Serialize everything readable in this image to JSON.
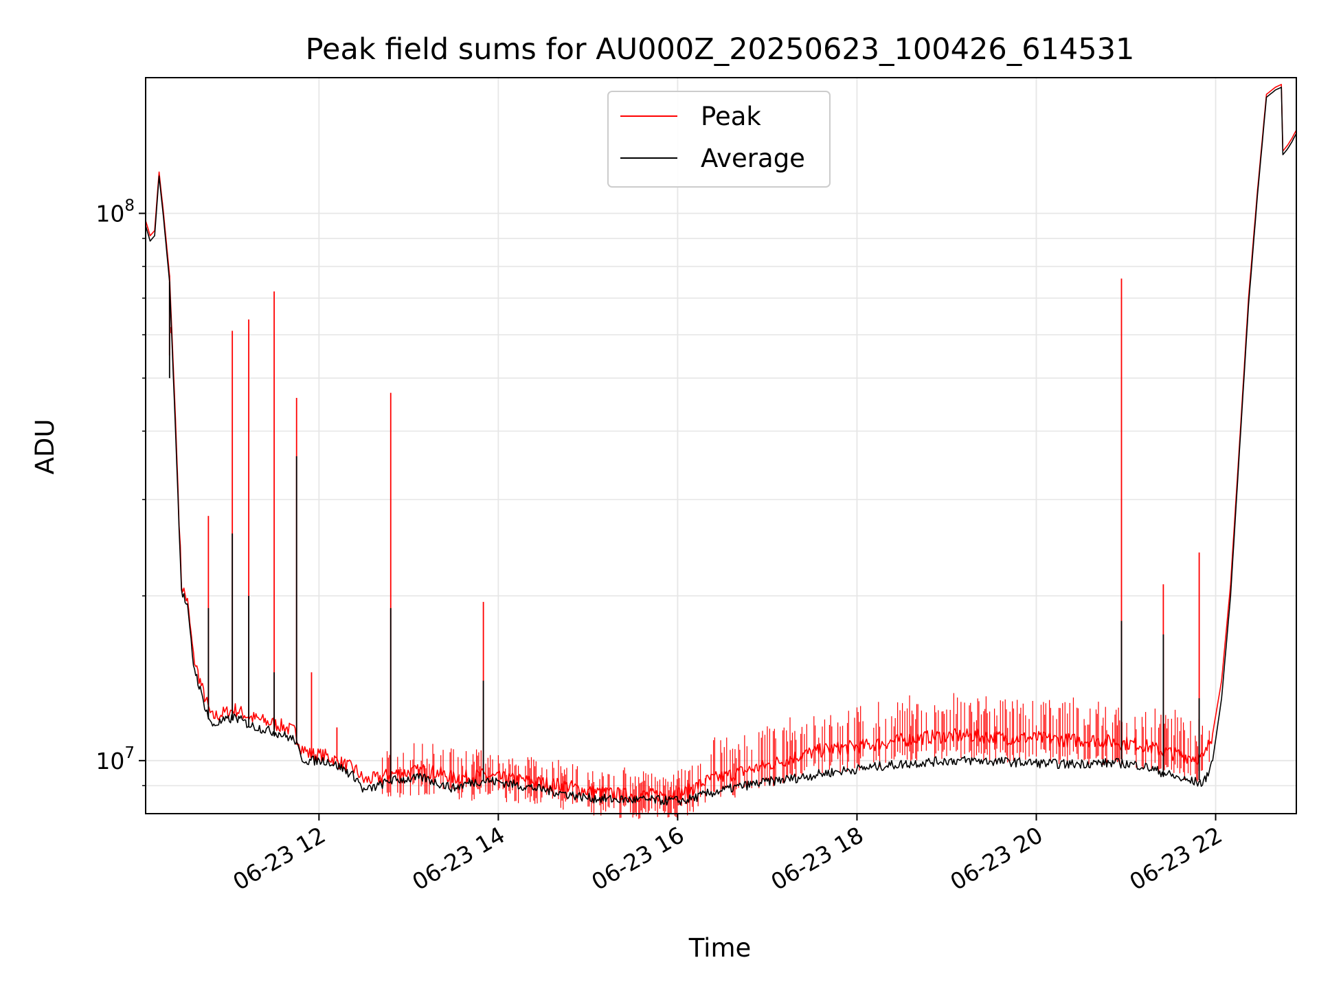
{
  "colors": {
    "peak": "#ff0000",
    "average": "#000000",
    "grid": "#e6e6e6",
    "background": "#ffffff"
  },
  "chart_data": {
    "type": "line",
    "title": "Peak field sums for AU000Z_20250623_100426_614531",
    "xlabel": "Time",
    "ylabel": "ADU",
    "yscale": "log",
    "grid": true,
    "legend_position": "upper center",
    "x_ticks": [
      "06-23 12",
      "06-23 14",
      "06-23 16",
      "06-23 18",
      "06-23 20",
      "06-23 22"
    ],
    "y_ticks": [
      {
        "value": 10000000,
        "base": "10",
        "exp": "7"
      },
      {
        "value": 100000000,
        "base": "10",
        "exp": "8"
      }
    ],
    "xlim": [
      "2025-06-23 10:04",
      "2025-06-23 22:54"
    ],
    "ylim": [
      8000000,
      177000000
    ],
    "series": [
      {
        "name": "Peak",
        "color": "#ff0000",
        "points": [
          [
            "10:04",
            97000000
          ],
          [
            "10:07",
            91000000
          ],
          [
            "10:10",
            93000000
          ],
          [
            "10:13",
            119000000
          ],
          [
            "10:16",
            100000000
          ],
          [
            "10:20",
            77000000
          ],
          [
            "10:24",
            42000000
          ],
          [
            "10:28",
            21000000
          ],
          [
            "10:32",
            19500000
          ],
          [
            "10:36",
            15500000
          ],
          [
            "10:42",
            13500000
          ],
          [
            "10:48",
            12000000
          ],
          [
            "10:56",
            12200000
          ],
          [
            "11:04",
            12400000
          ],
          [
            "11:14",
            12000000
          ],
          [
            "11:24",
            11800000
          ],
          [
            "11:34",
            11600000
          ],
          [
            "11:44",
            11300000
          ],
          [
            "11:48",
            10600000
          ],
          [
            "11:53",
            10300000
          ],
          [
            "12:05",
            10200000
          ],
          [
            "12:15",
            9900000
          ],
          [
            "12:25",
            9600000
          ],
          [
            "12:30",
            9200000
          ],
          [
            "12:40",
            9300000
          ],
          [
            "12:48",
            9450000
          ],
          [
            "12:58",
            9500000
          ],
          [
            "13:10",
            9600000
          ],
          [
            "13:20",
            9500000
          ],
          [
            "13:30",
            9300000
          ],
          [
            "13:40",
            9350000
          ],
          [
            "13:50",
            9400000
          ],
          [
            "14:00",
            9300000
          ],
          [
            "14:15",
            9200000
          ],
          [
            "14:30",
            9100000
          ],
          [
            "14:45",
            9000000
          ],
          [
            "15:00",
            8800000
          ],
          [
            "15:15",
            8700000
          ],
          [
            "15:30",
            8650000
          ],
          [
            "15:45",
            8650000
          ],
          [
            "15:55",
            8700000
          ],
          [
            "16:05",
            8750000
          ],
          [
            "16:20",
            9200000
          ],
          [
            "16:40",
            9500000
          ],
          [
            "17:00",
            9800000
          ],
          [
            "17:20",
            10200000
          ],
          [
            "17:40",
            10500000
          ],
          [
            "18:00",
            10600000
          ],
          [
            "18:20",
            10800000
          ],
          [
            "18:40",
            11000000
          ],
          [
            "19:00",
            11100000
          ],
          [
            "19:20",
            11100000
          ],
          [
            "19:40",
            11000000
          ],
          [
            "20:00",
            11000000
          ],
          [
            "20:20",
            10900000
          ],
          [
            "20:40",
            10900000
          ],
          [
            "20:55",
            10800000
          ],
          [
            "21:10",
            10700000
          ],
          [
            "21:25",
            10400000
          ],
          [
            "21:40",
            10200000
          ],
          [
            "21:52",
            10100000
          ],
          [
            "21:58",
            11200000
          ],
          [
            "22:04",
            14000000
          ],
          [
            "22:10",
            21000000
          ],
          [
            "22:16",
            38000000
          ],
          [
            "22:22",
            70000000
          ],
          [
            "22:28",
            110000000
          ],
          [
            "22:34",
            165000000
          ],
          [
            "22:40",
            170000000
          ],
          [
            "22:44",
            172000000
          ],
          [
            "22:45",
            130000000
          ],
          [
            "22:48",
            133000000
          ],
          [
            "22:51",
            137000000
          ],
          [
            "22:54",
            142000000
          ]
        ],
        "spikes": [
          [
            "10:20",
            55000000
          ],
          [
            "10:21",
            62000000
          ],
          [
            "10:46",
            28000000
          ],
          [
            "11:02",
            61000000
          ],
          [
            "11:13",
            64000000
          ],
          [
            "11:30",
            72000000
          ],
          [
            "11:45",
            46000000
          ],
          [
            "11:55",
            14500000
          ],
          [
            "12:12",
            11500000
          ],
          [
            "12:48",
            47000000
          ],
          [
            "13:50",
            19500000
          ],
          [
            "20:57",
            76000000
          ],
          [
            "21:25",
            21000000
          ],
          [
            "21:49",
            24000000
          ]
        ]
      },
      {
        "name": "Average",
        "color": "#000000",
        "points": [
          [
            "10:04",
            95000000
          ],
          [
            "10:07",
            89000000
          ],
          [
            "10:10",
            91000000
          ],
          [
            "10:13",
            117000000
          ],
          [
            "10:16",
            98000000
          ],
          [
            "10:20",
            75000000
          ],
          [
            "10:24",
            40000000
          ],
          [
            "10:28",
            20500000
          ],
          [
            "10:32",
            19000000
          ],
          [
            "10:36",
            15000000
          ],
          [
            "10:42",
            13000000
          ],
          [
            "10:48",
            11600000
          ],
          [
            "10:56",
            11800000
          ],
          [
            "11:04",
            12000000
          ],
          [
            "11:14",
            11600000
          ],
          [
            "11:24",
            11400000
          ],
          [
            "11:34",
            11200000
          ],
          [
            "11:44",
            10900000
          ],
          [
            "11:48",
            10100000
          ],
          [
            "11:53",
            10000000
          ],
          [
            "12:05",
            10000000
          ],
          [
            "12:15",
            9700000
          ],
          [
            "12:25",
            9300000
          ],
          [
            "12:30",
            8800000
          ],
          [
            "12:40",
            9000000
          ],
          [
            "12:48",
            9200000
          ],
          [
            "12:58",
            9250000
          ],
          [
            "13:10",
            9300000
          ],
          [
            "13:20",
            9100000
          ],
          [
            "13:30",
            8900000
          ],
          [
            "13:40",
            9100000
          ],
          [
            "13:50",
            9200000
          ],
          [
            "14:00",
            9150000
          ],
          [
            "14:15",
            9000000
          ],
          [
            "14:30",
            8850000
          ],
          [
            "14:45",
            8700000
          ],
          [
            "15:00",
            8550000
          ],
          [
            "15:15",
            8500000
          ],
          [
            "15:30",
            8480000
          ],
          [
            "15:45",
            8470000
          ],
          [
            "15:55",
            8450000
          ],
          [
            "16:05",
            8450000
          ],
          [
            "16:20",
            8700000
          ],
          [
            "16:40",
            8950000
          ],
          [
            "17:00",
            9150000
          ],
          [
            "17:20",
            9300000
          ],
          [
            "17:40",
            9500000
          ],
          [
            "18:00",
            9650000
          ],
          [
            "18:20",
            9800000
          ],
          [
            "18:40",
            9900000
          ],
          [
            "19:00",
            10000000
          ],
          [
            "19:20",
            10000000
          ],
          [
            "19:40",
            9950000
          ],
          [
            "20:00",
            9900000
          ],
          [
            "20:20",
            9850000
          ],
          [
            "20:40",
            9900000
          ],
          [
            "20:55",
            9900000
          ],
          [
            "21:10",
            9800000
          ],
          [
            "21:25",
            9500000
          ],
          [
            "21:40",
            9200000
          ],
          [
            "21:52",
            9100000
          ],
          [
            "21:58",
            10000000
          ],
          [
            "22:04",
            13000000
          ],
          [
            "22:10",
            20000000
          ],
          [
            "22:16",
            37000000
          ],
          [
            "22:22",
            68000000
          ],
          [
            "22:28",
            108000000
          ],
          [
            "22:34",
            163000000
          ],
          [
            "22:40",
            168000000
          ],
          [
            "22:44",
            170000000
          ],
          [
            "22:45",
            128000000
          ],
          [
            "22:48",
            131000000
          ],
          [
            "22:51",
            135000000
          ],
          [
            "22:54",
            140000000
          ]
        ],
        "spikes": [
          [
            "10:20",
            50000000
          ],
          [
            "10:46",
            19000000
          ],
          [
            "11:02",
            26000000
          ],
          [
            "11:13",
            20000000
          ],
          [
            "11:30",
            14500000
          ],
          [
            "11:45",
            36000000
          ],
          [
            "12:48",
            19000000
          ],
          [
            "13:50",
            14000000
          ],
          [
            "20:57",
            18000000
          ],
          [
            "21:25",
            17000000
          ],
          [
            "21:49",
            13000000
          ]
        ]
      }
    ]
  }
}
